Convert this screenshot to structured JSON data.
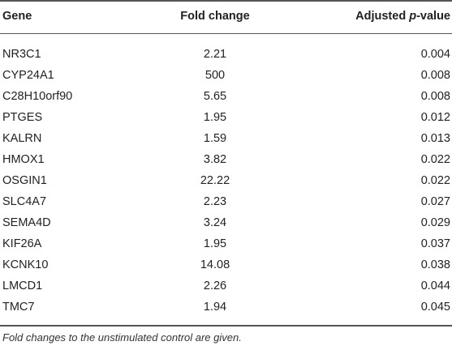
{
  "table": {
    "headers": {
      "gene": "Gene",
      "fold_change": "Fold change",
      "adjusted_prefix": "Adjusted ",
      "p_italic": "p",
      "p_suffix": "-value"
    },
    "rows": [
      {
        "gene": "NR3C1",
        "fold_change": "2.21",
        "p_value": "0.004"
      },
      {
        "gene": "CYP24A1",
        "fold_change": "500",
        "p_value": "0.008"
      },
      {
        "gene": "C28H10orf90",
        "fold_change": "5.65",
        "p_value": "0.008"
      },
      {
        "gene": "PTGES",
        "fold_change": "1.95",
        "p_value": "0.012"
      },
      {
        "gene": "KALRN",
        "fold_change": "1.59",
        "p_value": "0.013"
      },
      {
        "gene": "HMOX1",
        "fold_change": "3.82",
        "p_value": "0.022"
      },
      {
        "gene": "OSGIN1",
        "fold_change": "22.22",
        "p_value": "0.022"
      },
      {
        "gene": "SLC4A7",
        "fold_change": "2.23",
        "p_value": "0.027"
      },
      {
        "gene": "SEMA4D",
        "fold_change": "3.24",
        "p_value": "0.029"
      },
      {
        "gene": "KIF26A",
        "fold_change": "1.95",
        "p_value": "0.037"
      },
      {
        "gene": "KCNK10",
        "fold_change": "14.08",
        "p_value": "0.038"
      },
      {
        "gene": "LMCD1",
        "fold_change": "2.26",
        "p_value": "0.044"
      },
      {
        "gene": "TMC7",
        "fold_change": "1.94",
        "p_value": "0.045"
      }
    ],
    "footnote": "Fold changes to the unstimulated control are given."
  }
}
